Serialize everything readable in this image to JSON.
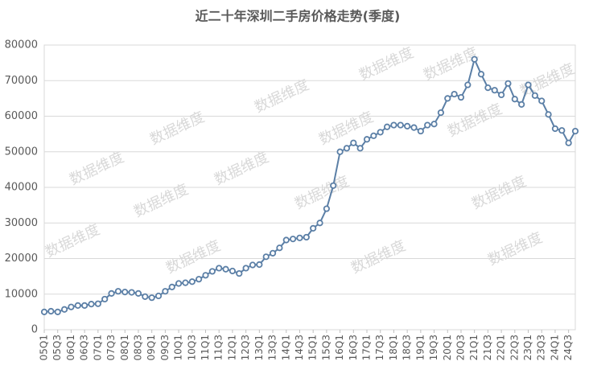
{
  "chart_data": {
    "type": "line",
    "title": "近二十年深圳二手房价格走势(季度)",
    "watermark": "数据维度",
    "categories": [
      "05Q1",
      null,
      "05Q3",
      null,
      "06Q1",
      null,
      "06Q3",
      null,
      "07Q1",
      null,
      "07Q3",
      null,
      "08Q1",
      null,
      "08Q3",
      null,
      "09Q1",
      null,
      "09Q3",
      null,
      "10Q1",
      null,
      "10Q3",
      null,
      "11Q1",
      null,
      "11Q3",
      null,
      "12Q1",
      null,
      "12Q3",
      null,
      "13Q1",
      null,
      "13Q3",
      null,
      "14Q1",
      null,
      "14Q3",
      null,
      "15Q1",
      null,
      "15Q3",
      null,
      "16Q1",
      null,
      "16Q3",
      null,
      "17Q1",
      null,
      "17Q3",
      null,
      "18Q1",
      null,
      "18Q3",
      null,
      "19Q1",
      null,
      "19Q3",
      null,
      "20Q1",
      null,
      "20Q3",
      null,
      "21Q1",
      null,
      "21Q3",
      null,
      "22Q1",
      null,
      "22Q3",
      null,
      "23Q1",
      null,
      "23Q3",
      null,
      "24Q1",
      null,
      "24Q3",
      null
    ],
    "values": [
      5000,
      5200,
      5000,
      5700,
      6400,
      6800,
      6800,
      7200,
      7300,
      8600,
      10200,
      10800,
      10600,
      10500,
      10200,
      9300,
      9000,
      9500,
      10800,
      12000,
      13000,
      13200,
      13500,
      14200,
      15300,
      16400,
      17300,
      17000,
      16500,
      15800,
      17300,
      18200,
      18300,
      20500,
      21500,
      23000,
      25200,
      25500,
      25800,
      26000,
      28500,
      30000,
      34000,
      40500,
      50000,
      51000,
      52500,
      51000,
      53500,
      54500,
      55500,
      57000,
      57500,
      57500,
      57200,
      56800,
      55800,
      57500,
      57800,
      61000,
      65000,
      66200,
      65300,
      68800,
      76000,
      71800,
      68000,
      67300,
      66000,
      69200,
      64800,
      63300,
      68800,
      65800,
      64300,
      60500,
      56500,
      56000,
      52500,
      55800
    ],
    "color": "#5b7fa6",
    "ylim": [
      0,
      80000
    ],
    "yticks": [
      0,
      10000,
      20000,
      30000,
      40000,
      50000,
      60000,
      70000,
      80000
    ],
    "grid": true
  }
}
